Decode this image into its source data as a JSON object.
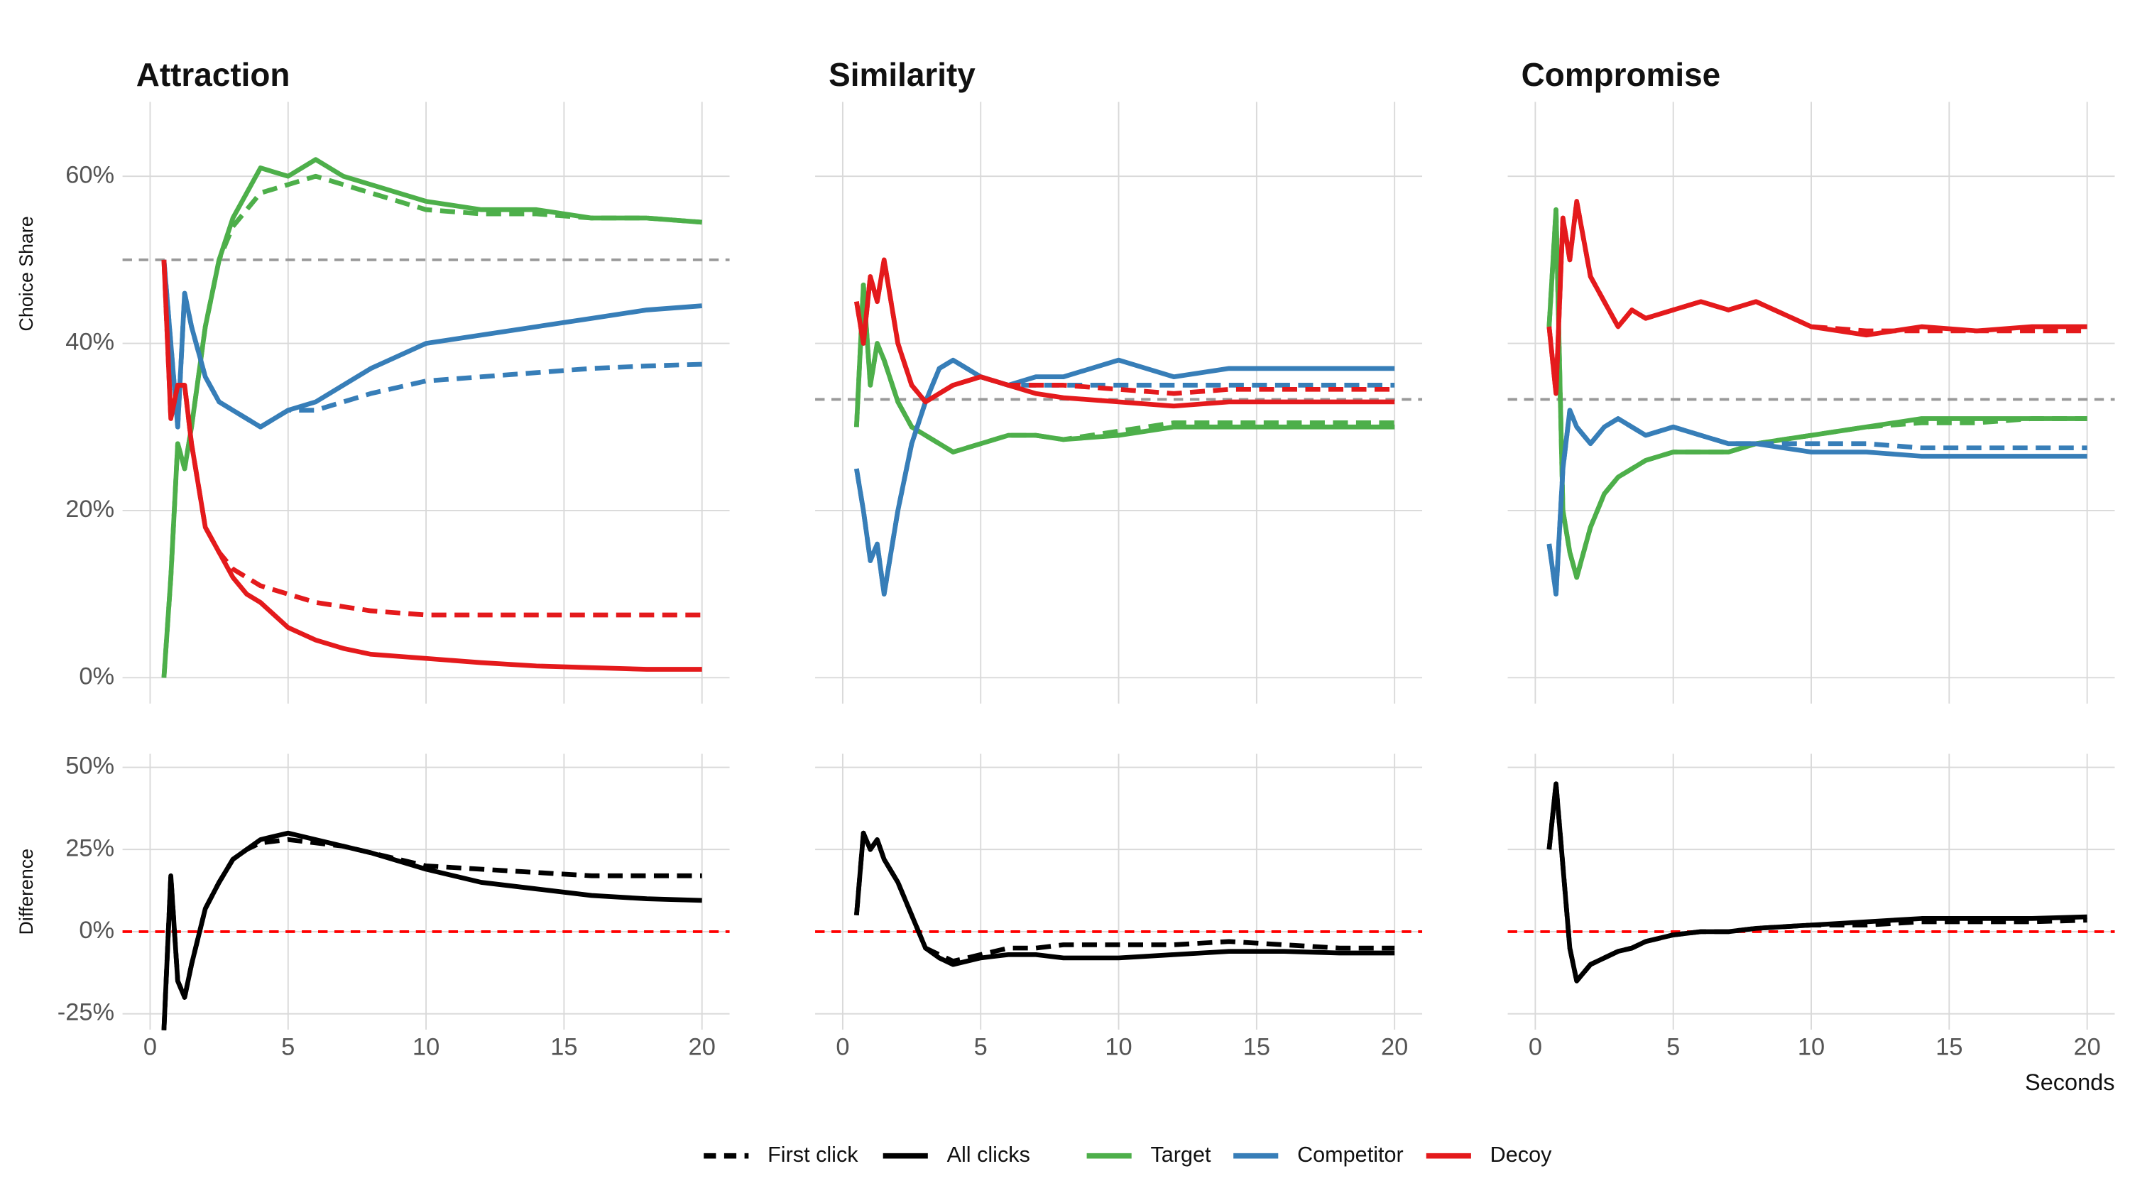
{
  "chart_data": [
    {
      "type": "line",
      "title": "Attraction",
      "y_label": "Choice Share",
      "show_y_tick_labels": true,
      "show_x_tick_labels": false,
      "x": [
        0.5,
        0.75,
        1,
        1.25,
        1.5,
        2,
        2.5,
        3,
        3.5,
        4,
        5,
        6,
        7,
        8,
        10,
        12,
        14,
        16,
        18,
        20
      ],
      "xlim": [
        -1,
        21
      ],
      "xticks": [
        0,
        5,
        10,
        15,
        20
      ],
      "ylim": [
        -3.1,
        68.9
      ],
      "yticks": [
        {
          "value": 0,
          "label": "0%"
        },
        {
          "value": 20,
          "label": "20%"
        },
        {
          "value": 40,
          "label": "40%"
        },
        {
          "value": 60,
          "label": "60%"
        }
      ],
      "hline": {
        "value": 50,
        "color": "#999999"
      },
      "grid": true,
      "series": [
        {
          "name": "Target",
          "color": "#4daf4a",
          "dash": false,
          "values": [
            0,
            12,
            28,
            25,
            30,
            42,
            50,
            55,
            58,
            61,
            60,
            62,
            60,
            59,
            57,
            56,
            56,
            55,
            55,
            54.5
          ]
        },
        {
          "name": "Target",
          "color": "#4daf4a",
          "dash": true,
          "values": [
            0,
            12,
            28,
            25,
            30,
            42,
            50,
            54,
            56,
            58,
            59,
            60,
            59,
            58,
            56,
            55.5,
            55.5,
            55,
            55,
            54.5
          ]
        },
        {
          "name": "Competitor",
          "color": "#377eb8",
          "dash": false,
          "values": [
            50,
            40,
            30,
            46,
            42,
            36,
            33,
            32,
            31,
            30,
            32,
            33,
            35,
            37,
            40,
            41,
            42,
            43,
            44,
            44.5
          ]
        },
        {
          "name": "Competitor",
          "color": "#377eb8",
          "dash": true,
          "values": [
            50,
            40,
            30,
            46,
            42,
            36,
            33,
            32,
            31,
            30,
            32,
            32,
            33,
            34,
            35.5,
            36,
            36.5,
            37,
            37.3,
            37.5
          ]
        },
        {
          "name": "Decoy",
          "color": "#e41a1c",
          "dash": false,
          "values": [
            50,
            31,
            35,
            35,
            28,
            18,
            15,
            12,
            10,
            9,
            6,
            4.5,
            3.5,
            2.8,
            2.3,
            1.8,
            1.4,
            1.2,
            1,
            1
          ]
        },
        {
          "name": "Decoy",
          "color": "#e41a1c",
          "dash": true,
          "values": [
            50,
            31,
            35,
            35,
            28,
            18,
            15,
            13,
            12,
            11,
            10,
            9,
            8.5,
            8,
            7.5,
            7.5,
            7.5,
            7.5,
            7.5,
            7.5
          ]
        }
      ]
    },
    {
      "type": "line",
      "title": "Similarity",
      "show_y_tick_labels": false,
      "show_x_tick_labels": false,
      "x": [
        0.5,
        0.75,
        1,
        1.25,
        1.5,
        2,
        2.5,
        3,
        3.5,
        4,
        5,
        6,
        7,
        8,
        10,
        12,
        14,
        16,
        18,
        20
      ],
      "xlim": [
        -1,
        21
      ],
      "xticks": [
        0,
        5,
        10,
        15,
        20
      ],
      "ylim": [
        -3.1,
        68.9
      ],
      "yticks": [
        {
          "value": 0,
          "label": "0%"
        },
        {
          "value": 20,
          "label": "20%"
        },
        {
          "value": 40,
          "label": "40%"
        },
        {
          "value": 60,
          "label": "60%"
        }
      ],
      "hline": {
        "value": 33.3,
        "color": "#999999"
      },
      "grid": true,
      "series": [
        {
          "name": "Target",
          "color": "#4daf4a",
          "dash": false,
          "values": [
            30,
            47,
            35,
            40,
            38,
            33,
            30,
            29,
            28,
            27,
            28,
            29,
            29,
            28.5,
            29,
            30,
            30,
            30,
            30,
            30
          ]
        },
        {
          "name": "Target",
          "color": "#4daf4a",
          "dash": true,
          "values": [
            30,
            47,
            35,
            40,
            38,
            33,
            30,
            29,
            28,
            27,
            28,
            29,
            29,
            28.5,
            29.5,
            30.5,
            30.5,
            30.5,
            30.5,
            30.5
          ]
        },
        {
          "name": "Competitor",
          "color": "#377eb8",
          "dash": false,
          "values": [
            25,
            20,
            14,
            16,
            10,
            20,
            28,
            33,
            37,
            38,
            36,
            35,
            36,
            36,
            38,
            36,
            37,
            37,
            37,
            37
          ]
        },
        {
          "name": "Competitor",
          "color": "#377eb8",
          "dash": true,
          "values": [
            25,
            20,
            14,
            16,
            10,
            20,
            28,
            33,
            37,
            38,
            36,
            35,
            35,
            35,
            35,
            35,
            35,
            35,
            35,
            35
          ]
        },
        {
          "name": "Decoy",
          "color": "#e41a1c",
          "dash": false,
          "values": [
            45,
            40,
            48,
            45,
            50,
            40,
            35,
            33,
            34,
            35,
            36,
            35,
            34,
            33.5,
            33,
            32.5,
            33,
            33,
            33,
            33
          ]
        },
        {
          "name": "Decoy",
          "color": "#e41a1c",
          "dash": true,
          "values": [
            45,
            40,
            48,
            45,
            50,
            40,
            35,
            33,
            34,
            35,
            36,
            35,
            35,
            35,
            34.5,
            34,
            34.5,
            34.5,
            34.5,
            34.5
          ]
        }
      ]
    },
    {
      "type": "line",
      "title": "Compromise",
      "show_y_tick_labels": false,
      "show_x_tick_labels": false,
      "x": [
        0.5,
        0.75,
        1,
        1.25,
        1.5,
        2,
        2.5,
        3,
        3.5,
        4,
        5,
        6,
        7,
        8,
        10,
        12,
        14,
        16,
        18,
        20
      ],
      "xlim": [
        -1,
        21
      ],
      "xticks": [
        0,
        5,
        10,
        15,
        20
      ],
      "ylim": [
        -3.1,
        68.9
      ],
      "yticks": [
        {
          "value": 0,
          "label": "0%"
        },
        {
          "value": 20,
          "label": "20%"
        },
        {
          "value": 40,
          "label": "40%"
        },
        {
          "value": 60,
          "label": "60%"
        }
      ],
      "hline": {
        "value": 33.3,
        "color": "#999999"
      },
      "grid": true,
      "series": [
        {
          "name": "Target",
          "color": "#4daf4a",
          "dash": false,
          "values": [
            42,
            56,
            20,
            15,
            12,
            18,
            22,
            24,
            25,
            26,
            27,
            27,
            27,
            28,
            29,
            30,
            31,
            31,
            31,
            31
          ]
        },
        {
          "name": "Target",
          "color": "#4daf4a",
          "dash": true,
          "values": [
            42,
            56,
            20,
            15,
            12,
            18,
            22,
            24,
            25,
            26,
            27,
            27,
            27,
            28,
            29,
            30,
            30.5,
            30.5,
            31,
            31
          ]
        },
        {
          "name": "Competitor",
          "color": "#377eb8",
          "dash": false,
          "values": [
            16,
            10,
            25,
            32,
            30,
            28,
            30,
            31,
            30,
            29,
            30,
            29,
            28,
            28,
            27,
            27,
            26.5,
            26.5,
            26.5,
            26.5
          ]
        },
        {
          "name": "Competitor",
          "color": "#377eb8",
          "dash": true,
          "values": [
            16,
            10,
            25,
            32,
            30,
            28,
            30,
            31,
            30,
            29,
            30,
            29,
            28,
            28,
            28,
            28,
            27.5,
            27.5,
            27.5,
            27.5
          ]
        },
        {
          "name": "Decoy",
          "color": "#e41a1c",
          "dash": false,
          "values": [
            42,
            34,
            55,
            50,
            57,
            48,
            45,
            42,
            44,
            43,
            44,
            45,
            44,
            45,
            42,
            41,
            42,
            41.5,
            42,
            42
          ]
        },
        {
          "name": "Decoy",
          "color": "#e41a1c",
          "dash": true,
          "values": [
            42,
            34,
            55,
            50,
            57,
            48,
            45,
            42,
            44,
            43,
            44,
            45,
            44,
            45,
            42,
            41.5,
            41.5,
            41.5,
            41.5,
            41.5
          ]
        }
      ]
    },
    {
      "type": "line",
      "y_label": "Difference",
      "show_y_tick_labels": true,
      "show_x_tick_labels": true,
      "x": [
        0.5,
        0.75,
        1,
        1.25,
        1.5,
        2,
        2.5,
        3,
        3.5,
        4,
        5,
        6,
        7,
        8,
        10,
        12,
        14,
        16,
        18,
        20
      ],
      "xlim": [
        -1,
        21
      ],
      "xticks": [
        0,
        5,
        10,
        15,
        20
      ],
      "ylim": [
        -29.8,
        54.1
      ],
      "yticks": [
        {
          "value": -25,
          "label": "-25%"
        },
        {
          "value": 0,
          "label": "0%"
        },
        {
          "value": 25,
          "label": "25%"
        },
        {
          "value": 50,
          "label": "50%"
        }
      ],
      "hline": {
        "value": 0,
        "color": "#ff0000"
      },
      "grid": true,
      "series": [
        {
          "name": "All clicks",
          "color": "#000000",
          "dash": false,
          "values": [
            -30,
            17,
            -15,
            -20,
            -10,
            7,
            15,
            22,
            25,
            28,
            30,
            28,
            26,
            24,
            19,
            15,
            13,
            11,
            10,
            9.5
          ]
        },
        {
          "name": "First click",
          "color": "#000000",
          "dash": true,
          "values": [
            -30,
            17,
            -15,
            -20,
            -10,
            7,
            15,
            22,
            25,
            27,
            28,
            27,
            26,
            24,
            20,
            19,
            18,
            17,
            17,
            17
          ]
        }
      ]
    },
    {
      "type": "line",
      "show_y_tick_labels": false,
      "show_x_tick_labels": true,
      "x": [
        0.5,
        0.75,
        1,
        1.25,
        1.5,
        2,
        2.5,
        3,
        3.5,
        4,
        5,
        6,
        7,
        8,
        10,
        12,
        14,
        16,
        18,
        20
      ],
      "xlim": [
        -1,
        21
      ],
      "xticks": [
        0,
        5,
        10,
        15,
        20
      ],
      "ylim": [
        -29.8,
        54.1
      ],
      "yticks": [
        {
          "value": -25,
          "label": "-25%"
        },
        {
          "value": 0,
          "label": "0%"
        },
        {
          "value": 25,
          "label": "25%"
        },
        {
          "value": 50,
          "label": "50%"
        }
      ],
      "hline": {
        "value": 0,
        "color": "#ff0000"
      },
      "grid": true,
      "series": [
        {
          "name": "All clicks",
          "color": "#000000",
          "dash": false,
          "values": [
            5,
            30,
            25,
            28,
            22,
            15,
            5,
            -5,
            -8,
            -10,
            -8,
            -7,
            -7,
            -8,
            -8,
            -7,
            -6,
            -6,
            -6.5,
            -6.5
          ]
        },
        {
          "name": "First click",
          "color": "#000000",
          "dash": true,
          "values": [
            5,
            30,
            25,
            28,
            22,
            15,
            5,
            -5,
            -7,
            -9,
            -7,
            -5,
            -5,
            -4,
            -4,
            -4,
            -3,
            -4,
            -5,
            -5
          ]
        }
      ]
    },
    {
      "type": "line",
      "x_label": "Seconds",
      "show_y_tick_labels": false,
      "show_x_tick_labels": true,
      "x": [
        0.5,
        0.75,
        1,
        1.25,
        1.5,
        2,
        2.5,
        3,
        3.5,
        4,
        5,
        6,
        7,
        8,
        10,
        12,
        14,
        16,
        18,
        20
      ],
      "xlim": [
        -1,
        21
      ],
      "xticks": [
        0,
        5,
        10,
        15,
        20
      ],
      "ylim": [
        -29.8,
        54.1
      ],
      "yticks": [
        {
          "value": -25,
          "label": "-25%"
        },
        {
          "value": 0,
          "label": "0%"
        },
        {
          "value": 25,
          "label": "25%"
        },
        {
          "value": 50,
          "label": "50%"
        }
      ],
      "hline": {
        "value": 0,
        "color": "#ff0000"
      },
      "grid": true,
      "series": [
        {
          "name": "All clicks",
          "color": "#000000",
          "dash": false,
          "values": [
            25,
            45,
            20,
            -5,
            -15,
            -10,
            -8,
            -6,
            -5,
            -3,
            -1,
            0,
            0,
            1,
            2,
            3,
            4,
            4,
            4,
            4.5
          ]
        },
        {
          "name": "First click",
          "color": "#000000",
          "dash": true,
          "values": [
            25,
            45,
            20,
            -5,
            -15,
            -10,
            -8,
            -6,
            -5,
            -3,
            -1,
            0,
            0,
            1,
            2,
            2,
            3,
            3,
            3,
            3.5
          ]
        }
      ]
    }
  ],
  "legend": [
    {
      "name": "First click",
      "color": "#000000",
      "dash": true
    },
    {
      "name": "All clicks",
      "color": "#000000",
      "dash": false
    },
    {
      "name": "Target",
      "color": "#4daf4a",
      "dash": false
    },
    {
      "name": "Competitor",
      "color": "#377eb8",
      "dash": false
    },
    {
      "name": "Decoy",
      "color": "#e41a1c",
      "dash": false
    }
  ]
}
